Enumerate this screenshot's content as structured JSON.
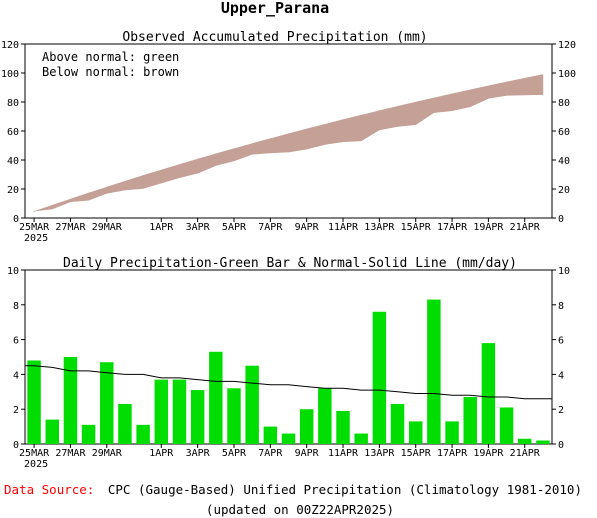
{
  "title": "Upper_Parana",
  "chart_data": [
    {
      "type": "area",
      "title": "Observed Accumulated Precipitation (mm)",
      "legend": [
        "Above normal: green",
        "Below normal: brown"
      ],
      "legend_position": "top-left",
      "colors": {
        "above": "#00cc00",
        "below": "#c4a097"
      },
      "ylim": [
        0,
        120
      ],
      "yticks": [
        "0",
        "20",
        "40",
        "60",
        "80",
        "100",
        "120"
      ],
      "x": [
        "25MAR",
        "26MAR",
        "27MAR",
        "28MAR",
        "29MAR",
        "30MAR",
        "31MAR",
        "1APR",
        "2APR",
        "3APR",
        "4APR",
        "5APR",
        "6APR",
        "7APR",
        "8APR",
        "9APR",
        "10APR",
        "11APR",
        "12APR",
        "13APR",
        "14APR",
        "15APR",
        "16APR",
        "17APR",
        "18APR",
        "19APR",
        "20APR",
        "21APR",
        "22APR"
      ],
      "series": [
        {
          "name": "Observed",
          "values": [
            4.8,
            6.2,
            11.2,
            12.3,
            17.0,
            19.3,
            20.4,
            24.1,
            27.8,
            30.9,
            36.2,
            39.4,
            43.9,
            44.9,
            45.5,
            47.5,
            50.7,
            52.6,
            53.2,
            60.8,
            63.1,
            64.4,
            72.7,
            74.0,
            76.7,
            82.5,
            84.6,
            84.9,
            85.1
          ]
        },
        {
          "name": "Normal",
          "values": [
            4.5,
            8.8,
            13.0,
            17.2,
            21.3,
            25.3,
            29.3,
            33.1,
            36.9,
            40.6,
            44.2,
            47.8,
            51.3,
            54.7,
            58.1,
            61.4,
            64.6,
            67.8,
            70.9,
            74.0,
            77.0,
            79.9,
            82.8,
            85.6,
            88.4,
            91.1,
            93.8,
            96.4,
            99.0
          ]
        }
      ]
    },
    {
      "type": "bar",
      "title": "Daily Precipitation-Green Bar & Normal-Solid Line (mm/day)",
      "colors": {
        "bar": "#00dd00",
        "line": "#000000"
      },
      "ylim": [
        0,
        10
      ],
      "yticks": [
        "0",
        "2",
        "4",
        "6",
        "8",
        "10"
      ],
      "x": [
        "25MAR",
        "26MAR",
        "27MAR",
        "28MAR",
        "29MAR",
        "30MAR",
        "31MAR",
        "1APR",
        "2APR",
        "3APR",
        "4APR",
        "5APR",
        "6APR",
        "7APR",
        "8APR",
        "9APR",
        "10APR",
        "11APR",
        "12APR",
        "13APR",
        "14APR",
        "15APR",
        "16APR",
        "17APR",
        "18APR",
        "19APR",
        "20APR",
        "21APR",
        "22APR"
      ],
      "series": [
        {
          "name": "Observed",
          "values": [
            4.8,
            1.4,
            5.0,
            1.1,
            4.7,
            2.3,
            1.1,
            3.7,
            3.7,
            3.1,
            5.3,
            3.2,
            4.5,
            1.0,
            0.6,
            2.0,
            3.2,
            1.9,
            0.6,
            7.6,
            2.3,
            1.3,
            8.3,
            1.3,
            2.7,
            5.8,
            2.1,
            0.3,
            0.2
          ]
        },
        {
          "name": "Normal",
          "values": [
            4.5,
            4.4,
            4.2,
            4.2,
            4.1,
            4.0,
            4.0,
            3.8,
            3.8,
            3.7,
            3.6,
            3.6,
            3.5,
            3.4,
            3.4,
            3.3,
            3.2,
            3.2,
            3.1,
            3.1,
            3.0,
            2.9,
            2.9,
            2.8,
            2.8,
            2.7,
            2.7,
            2.6,
            2.6
          ]
        }
      ]
    }
  ],
  "xaxis": {
    "tick_labels": [
      "25MAR",
      "27MAR",
      "29MAR",
      "1APR",
      "3APR",
      "5APR",
      "7APR",
      "9APR",
      "11APR",
      "13APR",
      "15APR",
      "17APR",
      "19APR",
      "21APR"
    ],
    "year_label": "2025"
  },
  "footer": {
    "source_label": "Data Source:",
    "source_text": "CPC (Gauge-Based) Unified Precipitation (Climatology 1981-2010)",
    "updated": "(updated on 00Z22APR2025)",
    "source_label_color": "#ff0000"
  }
}
